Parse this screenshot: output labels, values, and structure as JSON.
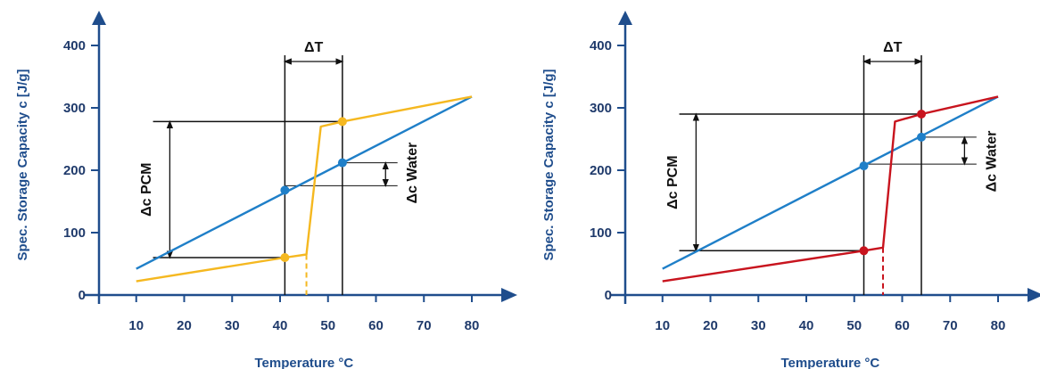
{
  "chart_data": [
    {
      "type": "line",
      "xlabel": "Temperature °C",
      "ylabel": "Spec. Storage Capacity c [J/g]",
      "x_ticks": [
        10,
        20,
        30,
        40,
        50,
        60,
        70,
        80
      ],
      "y_ticks": [
        0,
        100,
        200,
        300,
        400
      ],
      "xlim": [
        0,
        90
      ],
      "ylim": [
        0,
        440
      ],
      "grid": false,
      "colors": {
        "water": "#1f7fc8",
        "pcm": "#f5b820",
        "axis": "#1f4d8c",
        "annotation": "#111111"
      },
      "series": [
        {
          "color": "#1f7fc8",
          "x": [
            10,
            80
          ],
          "y": [
            42,
            318
          ]
        },
        {
          "color": "#f5b820",
          "x": [
            10,
            41,
            45.5,
            48.5,
            53,
            80
          ],
          "y": [
            22,
            60,
            65,
            270,
            278,
            318
          ]
        }
      ],
      "markers": [
        {
          "x": 41,
          "y": 60,
          "color": "#f5b820"
        },
        {
          "x": 53,
          "y": 278,
          "color": "#f5b820"
        },
        {
          "x": 41,
          "y": 168,
          "color": "#1f7fc8"
        },
        {
          "x": 53,
          "y": 212,
          "color": "#1f7fc8"
        }
      ],
      "dashed_x": 45.5,
      "dashed_color": "#f5b820",
      "t1": 41,
      "t2": 53,
      "annotations": {
        "delta_t": "ΔT",
        "delta_pcm": "Δc PCM",
        "delta_water": "Δc Water"
      }
    },
    {
      "type": "line",
      "xlabel": "Temperature °C",
      "ylabel": "Spec. Storage Capacity c [J/g]",
      "x_ticks": [
        10,
        20,
        30,
        40,
        50,
        60,
        70,
        80
      ],
      "y_ticks": [
        0,
        100,
        200,
        300,
        400
      ],
      "xlim": [
        0,
        90
      ],
      "ylim": [
        0,
        440
      ],
      "grid": false,
      "colors": {
        "water": "#1f7fc8",
        "pcm": "#c8141e",
        "axis": "#1f4d8c",
        "annotation": "#111111"
      },
      "series": [
        {
          "color": "#1f7fc8",
          "x": [
            10,
            80
          ],
          "y": [
            42,
            318
          ]
        },
        {
          "color": "#c8141e",
          "x": [
            10,
            52,
            56,
            58.5,
            64,
            80
          ],
          "y": [
            22,
            71,
            76,
            278,
            290,
            318
          ]
        }
      ],
      "markers": [
        {
          "x": 52,
          "y": 71,
          "color": "#c8141e"
        },
        {
          "x": 64,
          "y": 290,
          "color": "#c8141e"
        },
        {
          "x": 52,
          "y": 207,
          "color": "#1f7fc8"
        },
        {
          "x": 64,
          "y": 253,
          "color": "#1f7fc8"
        }
      ],
      "dashed_x": 56,
      "dashed_color": "#c8141e",
      "t1": 52,
      "t2": 64,
      "annotations": {
        "delta_t": "ΔT",
        "delta_pcm": "Δc PCM",
        "delta_water": "Δc Water"
      }
    }
  ]
}
